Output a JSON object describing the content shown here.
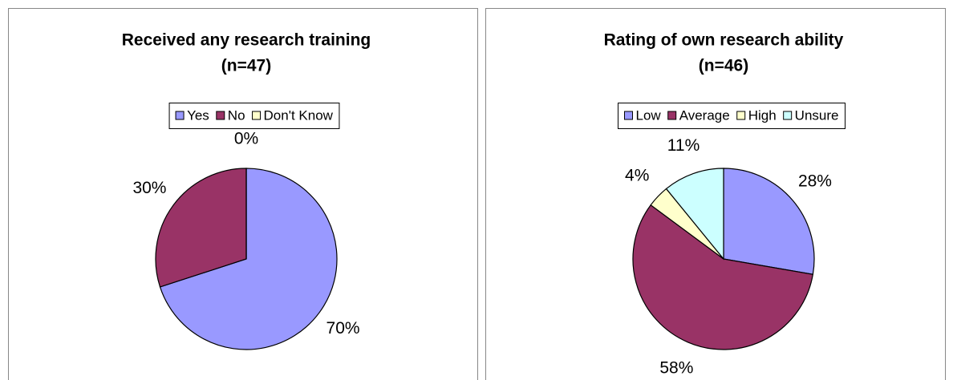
{
  "chart_data": [
    {
      "type": "pie",
      "title": "Received any research training",
      "subtitle": "(n=47)",
      "categories": [
        "Yes",
        "No",
        "Don't Know"
      ],
      "values": [
        70,
        30,
        0
      ],
      "value_labels": [
        "70%",
        "30%",
        "0%"
      ],
      "colors": [
        "#9999ff",
        "#993366",
        "#ffffcc"
      ],
      "legend": "top"
    },
    {
      "type": "pie",
      "title": "Rating of own research ability",
      "subtitle": "(n=46)",
      "categories": [
        "Low",
        "Average",
        "High",
        "Unsure"
      ],
      "values": [
        28,
        58,
        4,
        11
      ],
      "value_labels": [
        "28%",
        "58%",
        "4%",
        "11%"
      ],
      "colors": [
        "#9999ff",
        "#993366",
        "#ffffcc",
        "#ccffff"
      ],
      "legend": "top"
    }
  ]
}
